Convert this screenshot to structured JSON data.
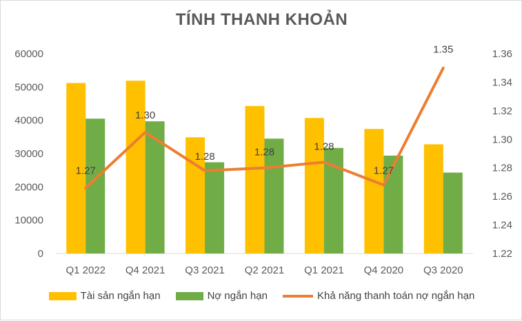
{
  "chart_data": {
    "type": "bar",
    "title": "TÍNH THANH KHOẢN",
    "categories": [
      "Q1 2022",
      "Q4 2021",
      "Q3 2021",
      "Q2 2021",
      "Q1 2021",
      "Q4 2020",
      "Q3 2020"
    ],
    "series": [
      {
        "name": "Tài sản ngắn hạn",
        "type": "bar",
        "axis": "left",
        "color": "#FFC000",
        "values": [
          51200,
          51900,
          34900,
          44300,
          40700,
          37400,
          32800
        ]
      },
      {
        "name": "Nợ ngắn hạn",
        "type": "bar",
        "axis": "left",
        "color": "#70AD47",
        "values": [
          40500,
          39700,
          27400,
          34500,
          31700,
          29400,
          24300
        ]
      },
      {
        "name": "Khả năng thanh toán nợ ngắn hạn",
        "type": "line",
        "axis": "right",
        "color": "#ED7D31",
        "values": [
          1.266,
          1.305,
          1.278,
          1.28,
          1.284,
          1.268,
          1.35
        ],
        "labels": [
          "1.27",
          "1.30",
          "1.28",
          "1.28",
          "1.28",
          "1.27",
          "1.35"
        ]
      }
    ],
    "y_left": {
      "min": 0,
      "max": 60000,
      "ticks": [
        "0",
        "10000",
        "20000",
        "30000",
        "40000",
        "50000",
        "60000"
      ]
    },
    "y_right": {
      "min": 1.22,
      "max": 1.36,
      "ticks": [
        "1.22",
        "1.24",
        "1.26",
        "1.28",
        "1.30",
        "1.32",
        "1.34",
        "1.36"
      ]
    },
    "grid": false,
    "legend_position": "bottom"
  }
}
